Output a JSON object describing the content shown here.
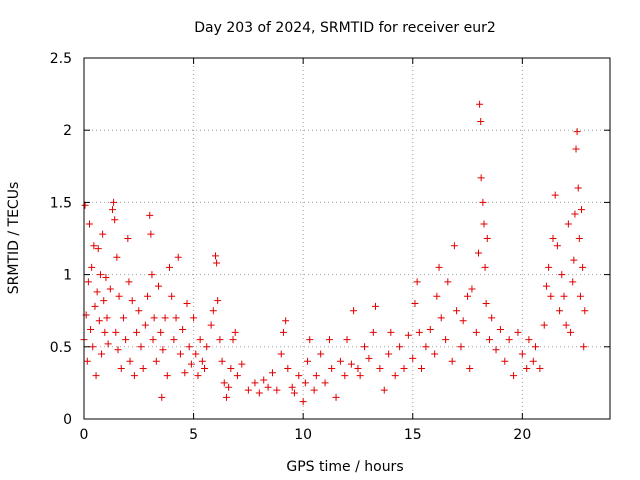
{
  "chart_data": {
    "type": "scatter",
    "title": "Day 203 of 2024, SRMTID for receiver eur2",
    "xlabel": "GPS time / hours",
    "ylabel": "SRMTID / TECUs",
    "xlim": [
      0,
      24
    ],
    "ylim": [
      0,
      2.5
    ],
    "xticks": [
      0,
      5,
      10,
      15,
      20
    ],
    "yticks": [
      0,
      0.5,
      1,
      1.5,
      2,
      2.5
    ],
    "xtick_labels": [
      "0",
      "5",
      "10",
      "15",
      "20"
    ],
    "ytick_labels": [
      "0",
      "0.5",
      "1",
      "1.5",
      "2",
      "2.5"
    ],
    "grid": true,
    "marker": "+",
    "color": "#e00000",
    "series": [
      {
        "name": "SRMTID",
        "points": [
          [
            0.0,
            0.55
          ],
          [
            0.05,
            1.48
          ],
          [
            0.1,
            0.72
          ],
          [
            0.15,
            0.4
          ],
          [
            0.2,
            0.95
          ],
          [
            0.25,
            1.35
          ],
          [
            0.3,
            0.62
          ],
          [
            0.35,
            1.05
          ],
          [
            0.4,
            0.5
          ],
          [
            0.45,
            1.2
          ],
          [
            0.5,
            0.78
          ],
          [
            0.55,
            0.3
          ],
          [
            0.6,
            0.88
          ],
          [
            0.65,
            1.18
          ],
          [
            0.7,
            0.68
          ],
          [
            0.75,
            1.0
          ],
          [
            0.8,
            0.45
          ],
          [
            0.85,
            1.28
          ],
          [
            0.9,
            0.82
          ],
          [
            0.95,
            0.6
          ],
          [
            1.0,
            0.98
          ],
          [
            1.05,
            0.7
          ],
          [
            1.1,
            0.52
          ],
          [
            1.2,
            0.9
          ],
          [
            1.3,
            1.45
          ],
          [
            1.35,
            1.5
          ],
          [
            1.4,
            1.38
          ],
          [
            1.45,
            0.6
          ],
          [
            1.5,
            1.12
          ],
          [
            1.55,
            0.48
          ],
          [
            1.6,
            0.85
          ],
          [
            1.7,
            0.35
          ],
          [
            1.8,
            0.7
          ],
          [
            1.9,
            0.55
          ],
          [
            2.0,
            1.25
          ],
          [
            2.05,
            0.95
          ],
          [
            2.1,
            0.4
          ],
          [
            2.2,
            0.82
          ],
          [
            2.3,
            0.3
          ],
          [
            2.4,
            0.6
          ],
          [
            2.5,
            0.75
          ],
          [
            2.6,
            0.5
          ],
          [
            2.7,
            0.35
          ],
          [
            2.8,
            0.65
          ],
          [
            2.9,
            0.85
          ],
          [
            3.0,
            1.41
          ],
          [
            3.05,
            1.28
          ],
          [
            3.1,
            1.0
          ],
          [
            3.15,
            0.55
          ],
          [
            3.2,
            0.7
          ],
          [
            3.3,
            0.4
          ],
          [
            3.4,
            0.92
          ],
          [
            3.5,
            0.6
          ],
          [
            3.55,
            0.15
          ],
          [
            3.6,
            0.48
          ],
          [
            3.7,
            0.7
          ],
          [
            3.8,
            0.3
          ],
          [
            3.9,
            1.05
          ],
          [
            4.0,
            0.85
          ],
          [
            4.1,
            0.55
          ],
          [
            4.2,
            0.7
          ],
          [
            4.3,
            1.12
          ],
          [
            4.4,
            0.45
          ],
          [
            4.5,
            0.62
          ],
          [
            4.6,
            0.32
          ],
          [
            4.7,
            0.8
          ],
          [
            4.8,
            0.5
          ],
          [
            4.9,
            0.38
          ],
          [
            5.0,
            0.7
          ],
          [
            5.1,
            0.45
          ],
          [
            5.2,
            0.3
          ],
          [
            5.3,
            0.55
          ],
          [
            5.4,
            0.4
          ],
          [
            5.5,
            0.35
          ],
          [
            5.6,
            0.5
          ],
          [
            5.8,
            0.65
          ],
          [
            5.9,
            0.75
          ],
          [
            6.0,
            1.13
          ],
          [
            6.05,
            1.08
          ],
          [
            6.1,
            0.82
          ],
          [
            6.2,
            0.55
          ],
          [
            6.3,
            0.4
          ],
          [
            6.4,
            0.25
          ],
          [
            6.5,
            0.15
          ],
          [
            6.6,
            0.22
          ],
          [
            6.7,
            0.35
          ],
          [
            6.8,
            0.55
          ],
          [
            6.9,
            0.6
          ],
          [
            7.0,
            0.3
          ],
          [
            7.2,
            0.38
          ],
          [
            7.5,
            0.2
          ],
          [
            7.8,
            0.25
          ],
          [
            8.0,
            0.18
          ],
          [
            8.2,
            0.27
          ],
          [
            8.4,
            0.22
          ],
          [
            8.6,
            0.32
          ],
          [
            8.8,
            0.2
          ],
          [
            9.0,
            0.45
          ],
          [
            9.1,
            0.6
          ],
          [
            9.2,
            0.68
          ],
          [
            9.3,
            0.35
          ],
          [
            9.5,
            0.22
          ],
          [
            9.6,
            0.18
          ],
          [
            9.8,
            0.3
          ],
          [
            10.0,
            0.12
          ],
          [
            10.1,
            0.25
          ],
          [
            10.2,
            0.4
          ],
          [
            10.3,
            0.55
          ],
          [
            10.5,
            0.2
          ],
          [
            10.6,
            0.3
          ],
          [
            10.8,
            0.45
          ],
          [
            11.0,
            0.25
          ],
          [
            11.2,
            0.55
          ],
          [
            11.3,
            0.35
          ],
          [
            11.5,
            0.15
          ],
          [
            11.7,
            0.4
          ],
          [
            11.9,
            0.3
          ],
          [
            12.0,
            0.55
          ],
          [
            12.2,
            0.38
          ],
          [
            12.3,
            0.75
          ],
          [
            12.5,
            0.35
          ],
          [
            12.6,
            0.3
          ],
          [
            12.8,
            0.5
          ],
          [
            13.0,
            0.42
          ],
          [
            13.2,
            0.6
          ],
          [
            13.3,
            0.78
          ],
          [
            13.5,
            0.35
          ],
          [
            13.7,
            0.2
          ],
          [
            13.9,
            0.45
          ],
          [
            14.0,
            0.6
          ],
          [
            14.2,
            0.3
          ],
          [
            14.4,
            0.5
          ],
          [
            14.6,
            0.35
          ],
          [
            14.8,
            0.58
          ],
          [
            15.0,
            0.42
          ],
          [
            15.1,
            0.8
          ],
          [
            15.2,
            0.95
          ],
          [
            15.3,
            0.6
          ],
          [
            15.4,
            0.35
          ],
          [
            15.6,
            0.5
          ],
          [
            15.8,
            0.62
          ],
          [
            16.0,
            0.45
          ],
          [
            16.1,
            0.85
          ],
          [
            16.2,
            1.05
          ],
          [
            16.3,
            0.7
          ],
          [
            16.5,
            0.55
          ],
          [
            16.6,
            0.95
          ],
          [
            16.8,
            0.4
          ],
          [
            16.9,
            1.2
          ],
          [
            17.0,
            0.75
          ],
          [
            17.2,
            0.5
          ],
          [
            17.3,
            0.68
          ],
          [
            17.5,
            0.85
          ],
          [
            17.6,
            0.35
          ],
          [
            17.7,
            0.9
          ],
          [
            17.9,
            0.6
          ],
          [
            18.0,
            1.15
          ],
          [
            18.05,
            2.18
          ],
          [
            18.1,
            2.06
          ],
          [
            18.12,
            1.67
          ],
          [
            18.2,
            1.5
          ],
          [
            18.25,
            1.35
          ],
          [
            18.3,
            1.05
          ],
          [
            18.35,
            0.8
          ],
          [
            18.4,
            1.25
          ],
          [
            18.5,
            0.55
          ],
          [
            18.6,
            0.7
          ],
          [
            18.8,
            0.48
          ],
          [
            19.0,
            0.62
          ],
          [
            19.2,
            0.4
          ],
          [
            19.4,
            0.55
          ],
          [
            19.6,
            0.3
          ],
          [
            19.8,
            0.6
          ],
          [
            20.0,
            0.45
          ],
          [
            20.2,
            0.35
          ],
          [
            20.3,
            0.55
          ],
          [
            20.5,
            0.4
          ],
          [
            20.6,
            0.5
          ],
          [
            20.8,
            0.35
          ],
          [
            21.0,
            0.65
          ],
          [
            21.1,
            0.92
          ],
          [
            21.2,
            1.05
          ],
          [
            21.3,
            0.85
          ],
          [
            21.4,
            1.25
          ],
          [
            21.5,
            1.55
          ],
          [
            21.6,
            1.2
          ],
          [
            21.7,
            0.75
          ],
          [
            21.8,
            1.0
          ],
          [
            21.9,
            0.85
          ],
          [
            22.0,
            0.65
          ],
          [
            22.1,
            1.35
          ],
          [
            22.2,
            0.6
          ],
          [
            22.3,
            0.95
          ],
          [
            22.35,
            1.1
          ],
          [
            22.4,
            1.42
          ],
          [
            22.45,
            1.87
          ],
          [
            22.5,
            1.99
          ],
          [
            22.55,
            1.6
          ],
          [
            22.6,
            1.25
          ],
          [
            22.65,
            0.85
          ],
          [
            22.7,
            1.45
          ],
          [
            22.75,
            1.05
          ],
          [
            22.8,
            0.5
          ],
          [
            22.85,
            0.75
          ]
        ]
      }
    ]
  }
}
